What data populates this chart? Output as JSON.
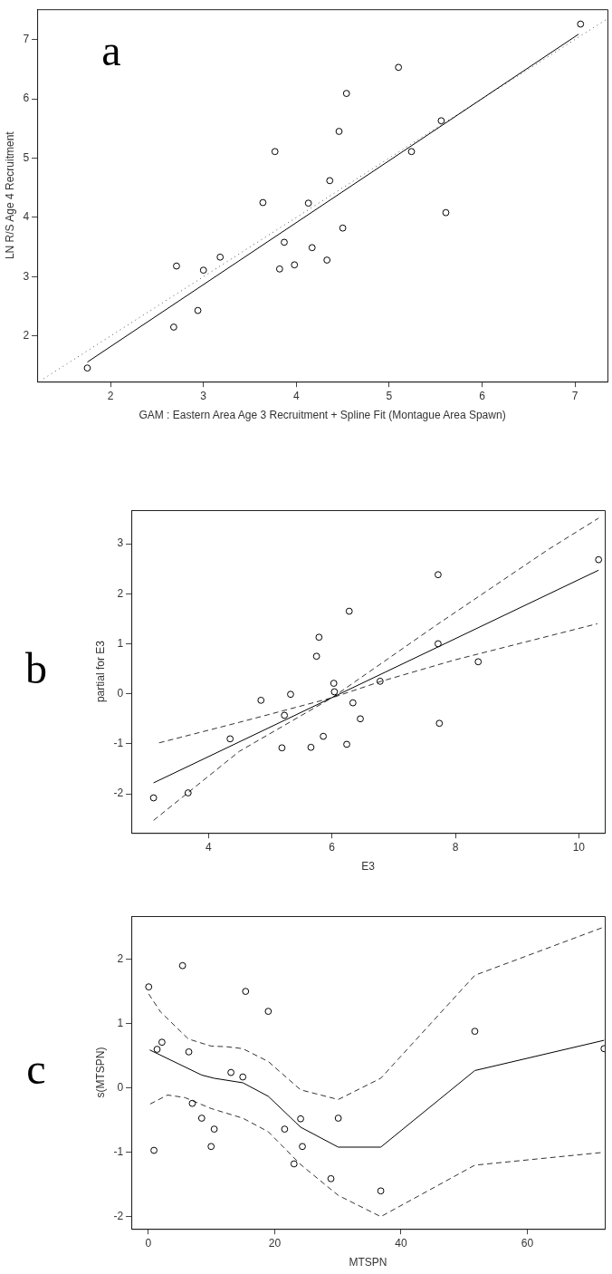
{
  "chart_data": [
    {
      "type": "scatter",
      "xlabel": "GAM : Eastern Area Age 3 Recruitment + Spline Fit (Montague Area Spawn)",
      "ylabel": "LN R/S Age 4 Recruitment",
      "annotations": [
        "a"
      ],
      "xlim": [
        1.21,
        7.35
      ],
      "ylim": [
        1.23,
        7.51
      ],
      "xticks": [
        2,
        3,
        4,
        5,
        6,
        7
      ],
      "yticks": [
        2,
        3,
        4,
        5,
        6,
        7
      ],
      "grid": false,
      "legend": false,
      "marker": "circle",
      "series": [
        {
          "color": "#000000",
          "x": [
            1.75,
            2.68,
            2.71,
            2.94,
            3.0,
            3.18,
            3.64,
            3.77,
            3.82,
            3.87,
            3.98,
            4.13,
            4.17,
            4.33,
            4.36,
            4.46,
            4.5,
            4.54,
            5.1,
            5.24,
            5.56,
            5.61,
            7.06
          ],
          "values": [
            1.46,
            2.15,
            3.18,
            2.43,
            3.11,
            3.33,
            4.25,
            5.11,
            3.13,
            3.58,
            3.2,
            4.24,
            3.49,
            3.28,
            4.62,
            5.45,
            3.82,
            6.09,
            6.53,
            5.11,
            5.63,
            4.08,
            7.26
          ]
        },
        {
          "type": "line",
          "color": "#000000",
          "marker": "none",
          "line_style": "solid",
          "x": [
            1.75,
            7.04
          ],
          "values": [
            1.56,
            7.09
          ]
        },
        {
          "type": "line",
          "color": "#555555",
          "marker": "none",
          "line_style": "dotted",
          "x": [
            1.28,
            7.35
          ],
          "values": [
            1.28,
            7.35
          ]
        }
      ]
    },
    {
      "type": "scatter",
      "xlabel": "E3",
      "ylabel": "partial for E3",
      "annotations": [
        "b"
      ],
      "xlim": [
        2.75,
        10.42
      ],
      "ylim": [
        -2.78,
        3.67
      ],
      "xticks": [
        4,
        6,
        8,
        10
      ],
      "yticks": [
        -2,
        -1,
        0,
        1,
        2,
        3
      ],
      "grid": false,
      "legend": false,
      "marker": "circle",
      "series": [
        {
          "color": "#000000",
          "x": [
            3.11,
            3.67,
            4.35,
            4.85,
            5.19,
            5.23,
            5.33,
            5.66,
            5.75,
            5.79,
            5.86,
            6.03,
            6.04,
            6.24,
            6.28,
            6.34,
            6.46,
            6.78,
            7.72,
            7.72,
            7.74,
            8.37,
            10.32
          ],
          "values": [
            -2.08,
            -1.98,
            -0.9,
            -0.13,
            -1.08,
            -0.43,
            -0.01,
            -1.07,
            0.75,
            1.13,
            -0.85,
            0.21,
            0.04,
            -1.01,
            1.65,
            -0.18,
            -0.5,
            0.25,
            2.38,
            1.0,
            -0.59,
            0.64,
            2.68
          ]
        },
        {
          "type": "line",
          "color": "#000000",
          "marker": "none",
          "line_style": "solid",
          "x": [
            3.11,
            10.32
          ],
          "values": [
            -1.78,
            2.47
          ]
        },
        {
          "type": "line",
          "color": "#333333",
          "marker": "none",
          "line_style": "dashed",
          "x": [
            3.11,
            4.5,
            6.0,
            7.7,
            9.5,
            10.32
          ],
          "values": [
            -2.53,
            -1.15,
            -0.08,
            1.38,
            2.88,
            3.51
          ]
        },
        {
          "type": "line",
          "color": "#333333",
          "marker": "none",
          "line_style": "dashed",
          "x": [
            3.2,
            4.5,
            6.0,
            6.8,
            8.0,
            10.3
          ],
          "values": [
            -0.98,
            -0.57,
            -0.08,
            0.25,
            0.68,
            1.4
          ]
        }
      ]
    },
    {
      "type": "scatter",
      "xlabel": "MTSPN",
      "ylabel": "s(MTSPN)",
      "annotations": [
        "c"
      ],
      "xlim": [
        -2.7,
        72.25
      ],
      "ylim": [
        -2.19,
        2.67
      ],
      "xticks": [
        0,
        20,
        40,
        60
      ],
      "yticks": [
        -2,
        -1,
        0,
        1,
        2
      ],
      "grid": false,
      "legend": false,
      "marker": "circle",
      "series": [
        {
          "color": "#000000",
          "x": [
            0.05,
            0.88,
            1.38,
            2.15,
            5.41,
            6.4,
            6.95,
            8.44,
            9.93,
            10.42,
            13.07,
            14.95,
            15.39,
            18.98,
            21.57,
            23.06,
            24.1,
            24.38,
            28.9,
            30.06,
            36.79,
            51.68,
            72.14
          ],
          "values": [
            1.57,
            -0.97,
            0.6,
            0.71,
            1.9,
            0.56,
            -0.24,
            -0.47,
            -0.91,
            -0.64,
            0.24,
            0.17,
            1.5,
            1.19,
            -0.64,
            -1.18,
            -0.48,
            -0.91,
            -1.41,
            -0.47,
            -1.6,
            0.88,
            0.61
          ]
        },
        {
          "type": "line",
          "color": "#000000",
          "marker": "none",
          "line_style": "solid",
          "x": [
            0.22,
            8.44,
            10.42,
            14.95,
            18.98,
            24.1,
            30.06,
            36.79,
            51.68,
            72.14
          ],
          "values": [
            0.59,
            0.2,
            0.15,
            0.08,
            -0.13,
            -0.61,
            -0.92,
            -0.92,
            0.27,
            0.74
          ]
        },
        {
          "type": "line",
          "color": "#333333",
          "marker": "none",
          "line_style": "dashed",
          "x": [
            0.05,
            1.93,
            6.34,
            9.93,
            12.41,
            14.95,
            18.98,
            24.1,
            30.06,
            36.79,
            51.68,
            72.14
          ],
          "values": [
            1.46,
            1.18,
            0.76,
            0.65,
            0.64,
            0.61,
            0.41,
            -0.03,
            -0.18,
            0.15,
            1.75,
            2.5
          ]
        },
        {
          "type": "line",
          "color": "#333333",
          "marker": "none",
          "line_style": "dashed",
          "x": [
            0.28,
            3.03,
            5.79,
            9.93,
            14.95,
            18.98,
            24.1,
            30.06,
            36.79,
            51.68,
            72.14
          ],
          "values": [
            -0.25,
            -0.11,
            -0.15,
            -0.32,
            -0.47,
            -0.68,
            -1.19,
            -1.67,
            -2.0,
            -1.2,
            -1.0
          ]
        }
      ]
    }
  ]
}
